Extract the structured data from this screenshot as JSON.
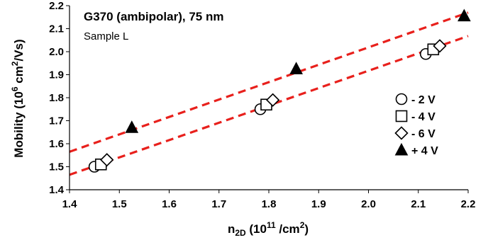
{
  "chart_data": {
    "type": "scatter",
    "annotation_title": "G370 (ambipolar), 75 nm",
    "annotation_subtitle": "Sample L",
    "xlabel": {
      "main": "n",
      "sub": "2D",
      "mid": " (10",
      "sup": "11",
      "tail": " /cm",
      "sup2": "2",
      "end": ")"
    },
    "ylabel": {
      "main": "Mobility (10",
      "sup": "6",
      "mid": " cm",
      "sup2": "2",
      "end": "/Vs)"
    },
    "xlim": [
      1.4,
      2.2
    ],
    "ylim": [
      1.4,
      2.2
    ],
    "xticks": [
      "1.4",
      "1.5",
      "1.6",
      "1.7",
      "1.8",
      "1.9",
      "2.0",
      "2.1",
      "2.2"
    ],
    "yticks": [
      "1.4",
      "1.5",
      "1.6",
      "1.7",
      "1.8",
      "1.9",
      "2.0",
      "2.1",
      "2.2"
    ],
    "grid": false,
    "legend_position": "right",
    "series": [
      {
        "name": "- 2 V",
        "marker": "circle",
        "x": [
          1.45,
          1.783,
          2.115
        ],
        "y": [
          1.5,
          1.75,
          1.99
        ]
      },
      {
        "name": "- 4 V",
        "marker": "square",
        "x": [
          1.463,
          1.795,
          2.13
        ],
        "y": [
          1.51,
          1.77,
          2.01
        ]
      },
      {
        "name": "- 6 V",
        "marker": "diamond",
        "x": [
          1.475,
          1.808,
          2.143
        ],
        "y": [
          1.53,
          1.79,
          2.025
        ]
      },
      {
        "name": "+ 4 V",
        "marker": "triangle",
        "x": [
          1.525,
          1.855,
          2.192
        ],
        "y": [
          1.67,
          1.925,
          2.155
        ]
      }
    ],
    "trendlines": [
      {
        "x": [
          1.4,
          2.2
        ],
        "y": [
          1.465,
          2.068
        ],
        "color": "#e8201c",
        "style": "dashed"
      },
      {
        "x": [
          1.4,
          2.2
        ],
        "y": [
          1.565,
          2.17
        ],
        "color": "#e8201c",
        "style": "dashed"
      }
    ]
  }
}
